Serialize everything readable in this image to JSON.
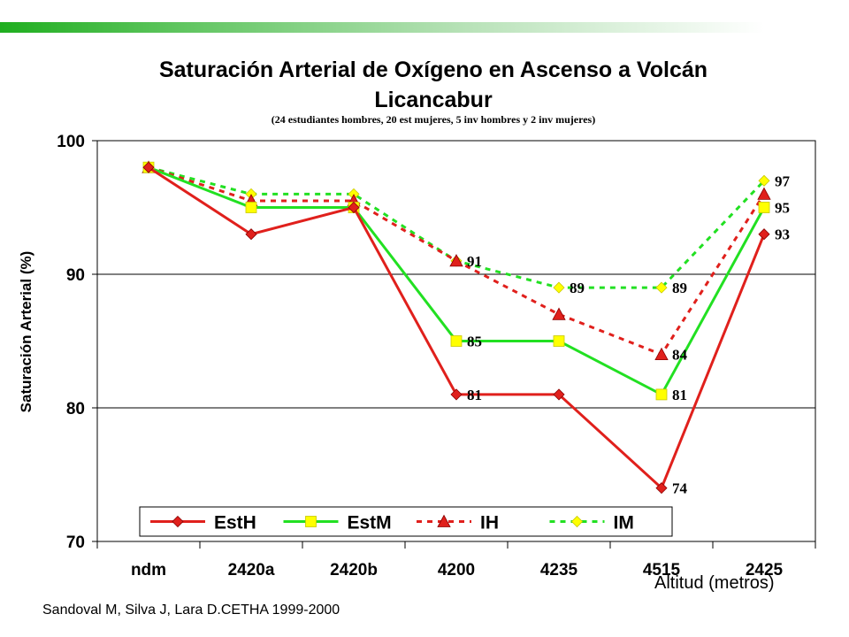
{
  "chart_data": {
    "type": "line",
    "title": "Saturación Arterial de Oxígeno en Ascenso a Volcán Licancabur",
    "subtitle": "(24 estudiantes hombres, 20 est mujeres, 5 inv hombres y 2 inv mujeres)",
    "xlabel": "Altitud (metros)",
    "ylabel": "Saturación Arterial (%)",
    "categories": [
      "ndm",
      "2420a",
      "2420b",
      "4200",
      "4235",
      "4515",
      "2425"
    ],
    "ylim": [
      70,
      100
    ],
    "yticks": [
      70,
      80,
      90,
      100
    ],
    "grid": "horizontal",
    "legend_position": "bottom-inside",
    "series": [
      {
        "name": "EstH",
        "values": [
          98,
          93,
          95,
          81,
          81,
          74,
          93
        ],
        "color": "#e0201c",
        "dash": "solid",
        "marker": "diamond",
        "data_labels": [
          null,
          null,
          null,
          "81",
          null,
          "74",
          "93"
        ]
      },
      {
        "name": "EstM",
        "values": [
          98,
          95,
          95,
          85,
          85,
          81,
          95
        ],
        "color": "#22e022",
        "dash": "solid",
        "marker": "square",
        "data_labels": [
          null,
          null,
          null,
          "85",
          null,
          "81",
          "95"
        ]
      },
      {
        "name": "IH",
        "values": [
          98,
          95.5,
          95.5,
          91,
          87,
          84,
          96
        ],
        "color": "#e0201c",
        "dash": "dashed",
        "marker": "triangle",
        "data_labels": [
          null,
          null,
          null,
          null,
          null,
          "84",
          null
        ]
      },
      {
        "name": "IM",
        "values": [
          98,
          96,
          96,
          91,
          89,
          89,
          97
        ],
        "color": "#22e022",
        "dash": "dashed",
        "marker": "diamond-yellow",
        "data_labels": [
          null,
          null,
          null,
          "91",
          "89",
          "89",
          "97"
        ]
      }
    ]
  },
  "source_note": "Sandoval M, Silva J, Lara D.CETHA 1999-2000"
}
